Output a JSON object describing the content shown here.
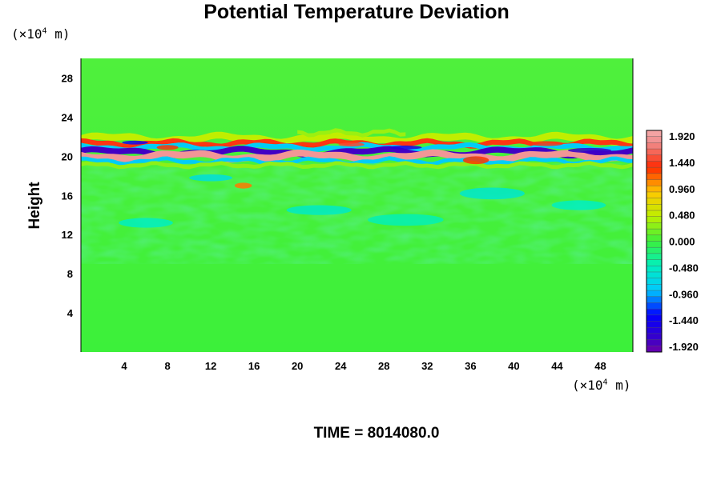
{
  "chart_data": {
    "type": "heatmap",
    "title": "Potential Temperature Deviation",
    "ylabel": "Height",
    "xlabel": "",
    "y_unit": "(×10",
    "x_unit": "(×10",
    "unit_exp": "4",
    "unit_tail": " m)",
    "xlim": [
      0,
      51
    ],
    "ylim": [
      0,
      30
    ],
    "xticks": [
      4,
      8,
      12,
      16,
      20,
      24,
      28,
      32,
      36,
      40,
      44,
      48
    ],
    "yticks": [
      4,
      8,
      12,
      16,
      20,
      24,
      28
    ],
    "colorbar": {
      "labels": [
        "1.920",
        "1.440",
        "0.960",
        "0.480",
        "0.000",
        "-0.480",
        "-0.960",
        "-1.440",
        "-1.920"
      ],
      "range": [
        -2.16,
        2.16
      ]
    },
    "field": {
      "background_value": 0.0,
      "band_center_height": 20.5,
      "band_features": [
        {
          "x_range": [
            0,
            51
          ],
          "height": 20.0,
          "value": 1.9
        },
        {
          "x_range": [
            0,
            51
          ],
          "height": 20.7,
          "value": -1.9
        },
        {
          "x_range": [
            0,
            51
          ],
          "height": 21.2,
          "value": 1.5
        },
        {
          "x_range": [
            0,
            51
          ],
          "height": 19.5,
          "value": -0.8
        },
        {
          "x_range": [
            14,
            16
          ],
          "height": 17.0,
          "value": 1.2
        },
        {
          "x_range": [
            20,
            30
          ],
          "height": 22.5,
          "value": 0.6
        },
        {
          "x_range": [
            34,
            38
          ],
          "height": 19.5,
          "value": 1.4
        }
      ]
    }
  },
  "time": "TIME = 8014080.0"
}
